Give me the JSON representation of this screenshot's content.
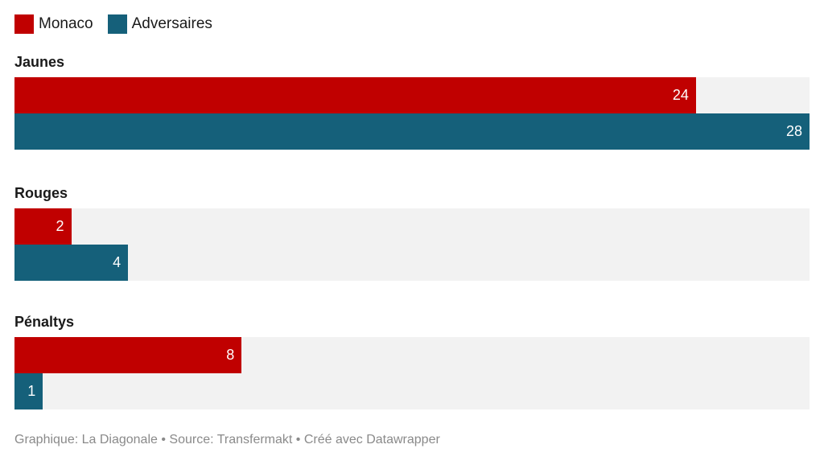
{
  "chart_data": {
    "type": "bar",
    "orientation": "horizontal",
    "categories": [
      "Jaunes",
      "Rouges",
      "Pénaltys"
    ],
    "series": [
      {
        "name": "Monaco",
        "color": "#c00000",
        "values": [
          24,
          2,
          8
        ]
      },
      {
        "name": "Adversaires",
        "color": "#15607a",
        "values": [
          28,
          4,
          1
        ]
      }
    ],
    "xlim": [
      0,
      28
    ],
    "grid": false,
    "legend_position": "top-left"
  },
  "footer": {
    "credit": "Graphique: La Diagonale • Source: Transfermakt • Créé avec Datawrapper"
  }
}
